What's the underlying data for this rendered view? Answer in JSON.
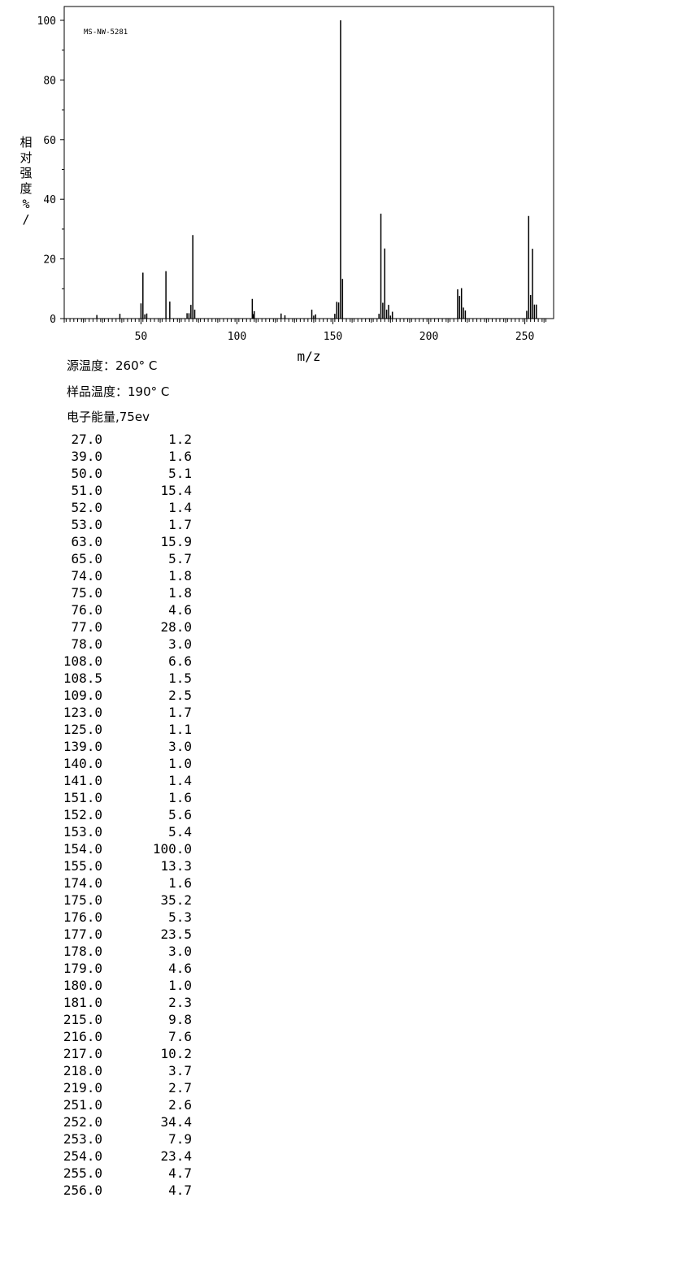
{
  "chart_data": {
    "type": "bar",
    "title": "MS-NW-5281",
    "xlabel": "m/z",
    "ylabel": "相对强度%/",
    "xlim": [
      10,
      265
    ],
    "ylim": [
      0,
      100
    ],
    "xticks": [
      50,
      100,
      150,
      200,
      250
    ],
    "yticks": [
      0,
      20,
      40,
      60,
      80,
      100
    ],
    "grid": false,
    "x": [
      27,
      39,
      50,
      51,
      52,
      53,
      63,
      65,
      74,
      75,
      76,
      77,
      78,
      108,
      108.5,
      109,
      123,
      125,
      139,
      140,
      141,
      151,
      152,
      153,
      154,
      155,
      174,
      175,
      176,
      177,
      178,
      179,
      180,
      181,
      215,
      216,
      217,
      218,
      219,
      251,
      252,
      253,
      254,
      255,
      256
    ],
    "values": [
      1.2,
      1.6,
      5.1,
      15.4,
      1.4,
      1.7,
      15.9,
      5.7,
      1.8,
      1.8,
      4.6,
      28.0,
      3.0,
      6.6,
      1.5,
      2.5,
      1.7,
      1.1,
      3.0,
      1.0,
      1.4,
      1.6,
      5.6,
      5.4,
      100.0,
      13.3,
      1.6,
      35.2,
      5.3,
      23.5,
      3.0,
      4.6,
      1.0,
      2.3,
      9.8,
      7.6,
      10.2,
      3.7,
      2.7,
      2.6,
      34.4,
      7.9,
      23.4,
      4.7,
      4.7
    ]
  },
  "conditions": {
    "source_temp": "源温度：260° C",
    "sample_temp": "样品温度：190° C",
    "electron_energy": "电子能量,75ev"
  },
  "peak_table": [
    [
      "27.0",
      "1.2"
    ],
    [
      "39.0",
      "1.6"
    ],
    [
      "50.0",
      "5.1"
    ],
    [
      "51.0",
      "15.4"
    ],
    [
      "52.0",
      "1.4"
    ],
    [
      "53.0",
      "1.7"
    ],
    [
      "63.0",
      "15.9"
    ],
    [
      "65.0",
      "5.7"
    ],
    [
      "74.0",
      "1.8"
    ],
    [
      "75.0",
      "1.8"
    ],
    [
      "76.0",
      "4.6"
    ],
    [
      "77.0",
      "28.0"
    ],
    [
      "78.0",
      "3.0"
    ],
    [
      "108.0",
      "6.6"
    ],
    [
      "108.5",
      "1.5"
    ],
    [
      "109.0",
      "2.5"
    ],
    [
      "123.0",
      "1.7"
    ],
    [
      "125.0",
      "1.1"
    ],
    [
      "139.0",
      "3.0"
    ],
    [
      "140.0",
      "1.0"
    ],
    [
      "141.0",
      "1.4"
    ],
    [
      "151.0",
      "1.6"
    ],
    [
      "152.0",
      "5.6"
    ],
    [
      "153.0",
      "5.4"
    ],
    [
      "154.0",
      "100.0"
    ],
    [
      "155.0",
      "13.3"
    ],
    [
      "174.0",
      "1.6"
    ],
    [
      "175.0",
      "35.2"
    ],
    [
      "176.0",
      "5.3"
    ],
    [
      "177.0",
      "23.5"
    ],
    [
      "178.0",
      "3.0"
    ],
    [
      "179.0",
      "4.6"
    ],
    [
      "180.0",
      "1.0"
    ],
    [
      "181.0",
      "2.3"
    ],
    [
      "215.0",
      "9.8"
    ],
    [
      "216.0",
      "7.6"
    ],
    [
      "217.0",
      "10.2"
    ],
    [
      "218.0",
      "3.7"
    ],
    [
      "219.0",
      "2.7"
    ],
    [
      "251.0",
      "2.6"
    ],
    [
      "252.0",
      "34.4"
    ],
    [
      "253.0",
      "7.9"
    ],
    [
      "254.0",
      "23.4"
    ],
    [
      "255.0",
      "4.7"
    ],
    [
      "256.0",
      "4.7"
    ]
  ]
}
